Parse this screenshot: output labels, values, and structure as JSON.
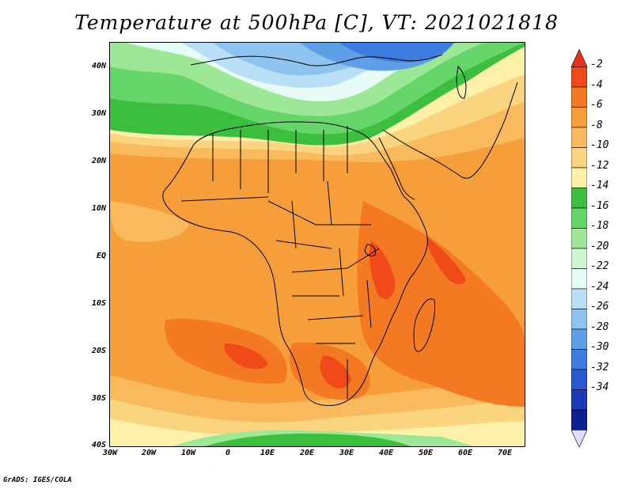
{
  "title": "Temperature at 500hPa [C], VT: 2021021818",
  "credit": "GrADS: IGES/COLA",
  "y_labels": [
    "40N",
    "30N",
    "20N",
    "10N",
    "EQ",
    "10S",
    "20S",
    "30S",
    "40S"
  ],
  "x_labels": [
    "30W",
    "20W",
    "10W",
    "0",
    "10E",
    "20E",
    "30E",
    "40E",
    "50E",
    "60E",
    "70E"
  ],
  "colorbar": {
    "labels": [
      "-2",
      "-4",
      "-6",
      "-8",
      "-10",
      "-12",
      "-14",
      "-16",
      "-18",
      "-20",
      "-22",
      "-24",
      "-26",
      "-28",
      "-30",
      "-32",
      "-34"
    ],
    "colors": [
      "#f04a18",
      "#f37a23",
      "#f69e3a",
      "#f9b95d",
      "#fbd480",
      "#fdf0a8",
      "#3cbf3f",
      "#67d66a",
      "#9de897",
      "#cff5cf",
      "#e8fcf7",
      "#b8dff5",
      "#8dc3ee",
      "#5e9fe8",
      "#3d7de0",
      "#2858d2",
      "#1a3ab8",
      "#0e1f90"
    ],
    "min_color": "#e0dcff",
    "max_color": "#e8341c"
  },
  "map": {
    "lat_range": [
      -40,
      45
    ],
    "lon_range": [
      -30,
      75
    ],
    "colors": {
      "orange": "#f69e3a",
      "light_orange": "#f9b95d",
      "yellow": "#fbd480",
      "pale_yellow": "#fdf0a8",
      "green": "#3cbf3f",
      "light_green": "#67d66a",
      "pale_green": "#9de897",
      "pale_cyan": "#e8fcf7",
      "light_blue": "#b8dff5",
      "blue": "#8dc3ee",
      "mid_blue": "#5e9fe8",
      "dark_blue": "#3d7de0",
      "red_orange": "#f37a23",
      "red": "#f04a18"
    }
  }
}
